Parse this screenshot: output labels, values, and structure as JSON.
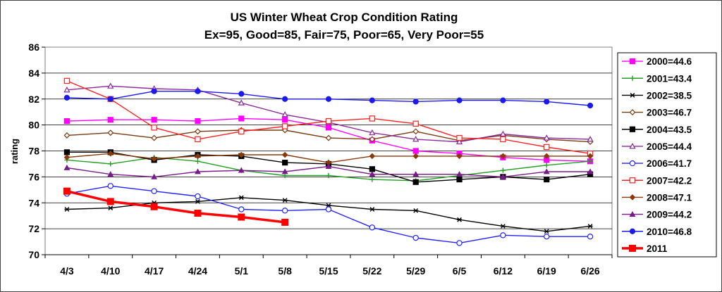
{
  "chart_data": {
    "type": "line",
    "title": "US Winter Wheat Crop Condition Rating",
    "subtitle": "Ex=95, Good=85, Fair=75, Poor=65, Very Poor=55",
    "xlabel": "",
    "ylabel": "rating",
    "categories": [
      "4/3",
      "4/10",
      "4/17",
      "4/24",
      "5/1",
      "5/8",
      "5/15",
      "5/22",
      "5/29",
      "6/5",
      "6/12",
      "6/19",
      "6/26"
    ],
    "ylim": [
      70,
      86
    ],
    "yticks": [
      70,
      72,
      74,
      76,
      78,
      80,
      82,
      84,
      86
    ],
    "grid": "horizontal",
    "legend_position": "right",
    "series": [
      {
        "name": "2000=44.6",
        "color": "#ff00ff",
        "marker": "square-filled",
        "width": 1.4,
        "values": [
          80.3,
          80.4,
          80.4,
          80.3,
          80.5,
          80.4,
          79.8,
          78.8,
          78.0,
          77.8,
          77.5,
          77.3,
          77.2
        ]
      },
      {
        "name": "2001=43.4",
        "color": "#22a022",
        "marker": "plus",
        "width": 1.4,
        "values": [
          77.3,
          77.0,
          77.5,
          77.2,
          76.5,
          76.1,
          76.1,
          75.8,
          75.7,
          76.1,
          76.5,
          76.9,
          77.2
        ]
      },
      {
        "name": "2002=38.5",
        "color": "#000000",
        "marker": "asterisk",
        "width": 1.4,
        "values": [
          73.5,
          73.6,
          74.0,
          74.1,
          74.4,
          74.2,
          73.8,
          73.5,
          73.4,
          72.7,
          72.2,
          71.8,
          72.2
        ]
      },
      {
        "name": "2003=46.7",
        "color": "#7a3a10",
        "marker": "diamond-open",
        "width": 1.4,
        "values": [
          79.2,
          79.4,
          79.0,
          79.5,
          79.6,
          79.6,
          79.0,
          78.9,
          79.5,
          78.8,
          79.2,
          78.9,
          78.7
        ]
      },
      {
        "name": "2004=43.5",
        "color": "#000000",
        "marker": "square-filled",
        "width": 1.4,
        "values": [
          77.9,
          77.9,
          77.3,
          77.7,
          77.6,
          77.1,
          77.0,
          76.6,
          75.6,
          75.8,
          76.0,
          75.8,
          76.2
        ]
      },
      {
        "name": "2005=44.4",
        "color": "#8a2a9a",
        "marker": "triangle-open",
        "width": 1.4,
        "values": [
          82.7,
          83.0,
          82.8,
          82.7,
          81.7,
          80.8,
          80.2,
          79.4,
          78.9,
          78.7,
          79.3,
          79.0,
          78.9
        ]
      },
      {
        "name": "2006=41.7",
        "color": "#2222ff",
        "marker": "circle-open",
        "width": 1.4,
        "values": [
          74.7,
          75.3,
          74.9,
          74.5,
          73.5,
          73.4,
          73.5,
          72.1,
          71.3,
          70.9,
          71.5,
          71.4,
          71.4
        ]
      },
      {
        "name": "2007=42.2",
        "color": "#ff2020",
        "marker": "square-open",
        "width": 1.4,
        "values": [
          83.4,
          82.0,
          79.8,
          78.9,
          79.5,
          79.9,
          80.3,
          80.5,
          80.1,
          79.0,
          78.9,
          78.3,
          77.8
        ]
      },
      {
        "name": "2008=47.1",
        "color": "#8a3a0a",
        "marker": "diamond-filled",
        "width": 1.4,
        "values": [
          77.5,
          77.8,
          77.4,
          77.6,
          77.7,
          77.7,
          77.1,
          77.6,
          77.6,
          77.6,
          77.6,
          77.6,
          77.6
        ]
      },
      {
        "name": "2009=44.2",
        "color": "#7a1a8a",
        "marker": "triangle-filled",
        "width": 1.4,
        "values": [
          76.7,
          76.2,
          76.0,
          76.4,
          76.5,
          76.4,
          76.8,
          76.2,
          76.2,
          76.2,
          76.0,
          76.4,
          76.4
        ]
      },
      {
        "name": "2010=46.8",
        "color": "#1a1aee",
        "marker": "circle-filled",
        "width": 1.4,
        "values": [
          82.1,
          82.0,
          82.6,
          82.6,
          82.4,
          82.0,
          82.0,
          81.9,
          81.8,
          81.9,
          81.9,
          81.8,
          81.5
        ]
      },
      {
        "name": "2011",
        "color": "#ff0000",
        "marker": "square-filled",
        "width": 3.5,
        "values": [
          74.9,
          74.1,
          73.7,
          73.2,
          72.9,
          72.5,
          null,
          null,
          null,
          null,
          null,
          null,
          null
        ]
      }
    ]
  }
}
